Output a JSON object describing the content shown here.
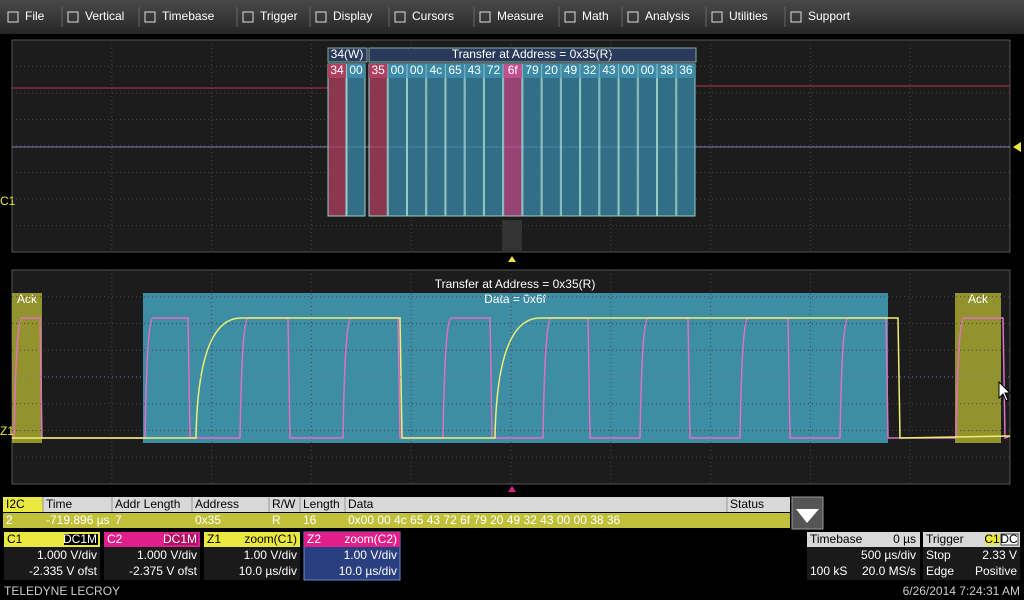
{
  "menu": [
    "File",
    "Vertical",
    "Timebase",
    "Trigger",
    "Display",
    "Cursors",
    "Measure",
    "Math",
    "Analysis",
    "Utilities",
    "Support"
  ],
  "top_view": {
    "channel_marker": "C1",
    "write_header": "34(W)",
    "read_header": "Transfer at Address = 0x35(R)",
    "write_bytes": [
      "34",
      "00"
    ],
    "read_bytes": [
      "35",
      "00",
      "00",
      "4c",
      "65",
      "43",
      "72",
      "6f",
      "79",
      "20",
      "49",
      "32",
      "43",
      "00",
      "00",
      "38",
      "36"
    ]
  },
  "zoom_view": {
    "channel_marker": "Z1",
    "title": "Transfer at Address = 0x35(R)",
    "subtitle": "Data = 0x6f",
    "ack_left": "Ack",
    "ack_right": "Ack"
  },
  "table": {
    "headers": [
      "I2C",
      "Time",
      "Addr Length",
      "Address",
      "R/W",
      "Length",
      "Data",
      "Status"
    ],
    "row": [
      "2",
      "-719.896 µs",
      "7",
      "0x35",
      "R",
      "16",
      "0x00 00 4c 65 43 72 6f 79 20 49 32 43 00 00 38 36"
    ]
  },
  "channels": [
    {
      "name": "C1",
      "badge": "DC1M",
      "scale": "1.000 V/div",
      "offset": "-2.335 V ofst"
    },
    {
      "name": "C2",
      "badge": "DC1M",
      "scale": "1.000 V/div",
      "offset": "-2.375 V ofst"
    },
    {
      "name": "Z1",
      "badge": "zoom(C1)",
      "scale": "1.00 V/div",
      "offset": "10.0 µs/div"
    },
    {
      "name": "Z2",
      "badge": "zoom(C2)",
      "scale": "1.00 V/div",
      "offset": "10.0 µs/div"
    }
  ],
  "timebase": {
    "label": "Timebase",
    "delay": "0 µs",
    "scale": "500 µs/div",
    "samples": "100 kS",
    "rate": "20.0 MS/s"
  },
  "trigger": {
    "label": "Trigger",
    "source": "C1",
    "coupling": "DC",
    "mode": "Stop",
    "level": "2.33 V",
    "type": "Edge",
    "slope": "Positive"
  },
  "footer": {
    "brand": "TELEDYNE LECROY",
    "datetime": "6/26/2014 7:24:31 AM"
  }
}
